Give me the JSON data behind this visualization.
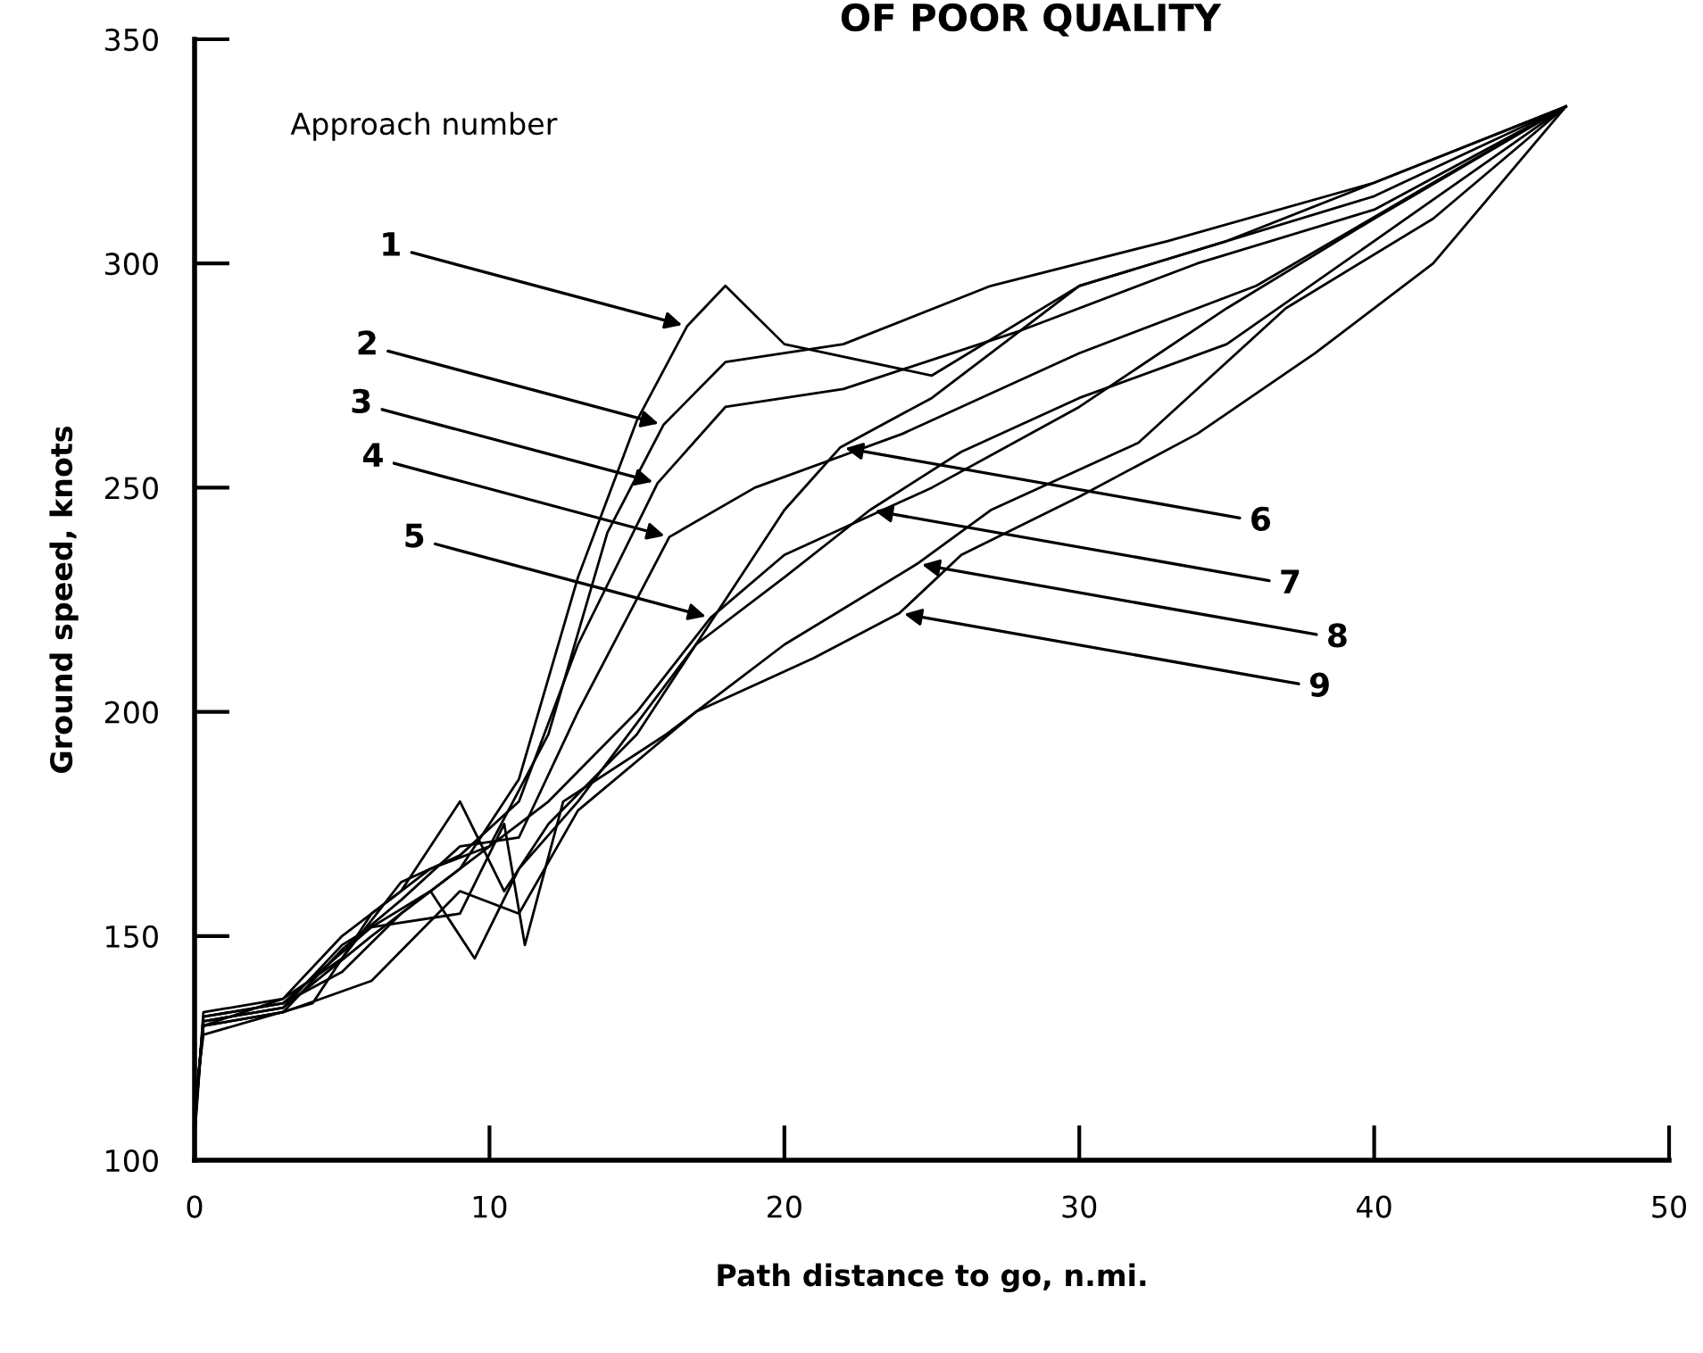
{
  "chart_data": {
    "type": "line",
    "xlabel": "Path distance to go, n.mi.",
    "ylabel": "Ground speed, knots",
    "xlim": [
      0,
      50
    ],
    "ylim": [
      100,
      350
    ],
    "xticks": [
      0,
      10,
      20,
      30,
      40,
      50
    ],
    "yticks": [
      100,
      150,
      200,
      250,
      300,
      350
    ],
    "grid": false,
    "marker": "none",
    "line_style": "solid",
    "series": [
      {
        "color": "#000000",
        "x": [
          0,
          0.3,
          3,
          5,
          7,
          9,
          11,
          13,
          15,
          16.7,
          18,
          20,
          25,
          30,
          35,
          40,
          46.5
        ],
        "values": [
          105,
          132,
          135,
          142,
          155,
          165,
          185,
          230,
          265,
          286,
          295,
          282,
          275,
          295,
          305,
          315,
          335
        ]
      },
      {
        "color": "#000000",
        "x": [
          0,
          0.3,
          3,
          6,
          8,
          10,
          12,
          14,
          15.9,
          18,
          22,
          27,
          33,
          40,
          46.5
        ],
        "values": [
          108,
          131,
          134,
          150,
          160,
          170,
          195,
          240,
          264,
          278,
          282,
          295,
          305,
          318,
          335
        ]
      },
      {
        "color": "#000000",
        "x": [
          0,
          0.3,
          3,
          5,
          7,
          9,
          11,
          13,
          15.7,
          18,
          22,
          28,
          34,
          40,
          46.5
        ],
        "values": [
          106,
          133,
          136,
          145,
          162,
          168,
          180,
          215,
          251,
          268,
          272,
          285,
          300,
          312,
          335
        ]
      },
      {
        "color": "#000000",
        "x": [
          0,
          0.3,
          3,
          5,
          7,
          9,
          11,
          13,
          16.1,
          19,
          24,
          30,
          36,
          42,
          46.5
        ],
        "values": [
          110,
          130,
          133,
          147,
          158,
          170,
          172,
          200,
          239,
          250,
          262,
          280,
          295,
          318,
          335
        ]
      },
      {
        "color": "#000000",
        "x": [
          0,
          0.3,
          4,
          6,
          8,
          10,
          12,
          15,
          17.5,
          20,
          25,
          30,
          35,
          40,
          46.5
        ],
        "values": [
          112,
          128,
          135,
          155,
          165,
          170,
          180,
          200,
          221,
          235,
          250,
          268,
          290,
          310,
          335
        ]
      },
      {
        "color": "#000000",
        "x": [
          0,
          0.3,
          3,
          5,
          7,
          9,
          10.5,
          12,
          15,
          18,
          20,
          21.9,
          25,
          30,
          35,
          40,
          46.5
        ],
        "values": [
          110,
          130,
          136,
          150,
          160,
          180,
          160,
          175,
          195,
          225,
          245,
          259,
          270,
          295,
          305,
          318,
          335
        ]
      },
      {
        "color": "#000000",
        "x": [
          0,
          0.3,
          3,
          5,
          8,
          9.5,
          11,
          13,
          17,
          20,
          22.9,
          26,
          30,
          35,
          40,
          46.5
        ],
        "values": [
          109,
          131,
          134,
          148,
          160,
          145,
          165,
          180,
          215,
          230,
          245,
          258,
          270,
          282,
          305,
          335
        ]
      },
      {
        "color": "#000000",
        "x": [
          0,
          0.3,
          3,
          6,
          9,
          10.5,
          11.2,
          12.5,
          16,
          20,
          24.5,
          27,
          32,
          37,
          42,
          46.5
        ],
        "values": [
          107,
          132,
          135,
          152,
          155,
          175,
          148,
          180,
          195,
          215,
          233,
          245,
          260,
          290,
          310,
          335
        ]
      },
      {
        "color": "#000000",
        "x": [
          0,
          0.3,
          3,
          6,
          9,
          11,
          13,
          17,
          21,
          23.9,
          26,
          30,
          34,
          38,
          42,
          46.5
        ],
        "values": [
          111,
          130,
          133,
          140,
          160,
          155,
          178,
          200,
          212,
          222,
          235,
          248,
          262,
          280,
          300,
          335
        ]
      }
    ],
    "annotations": [
      "OF POOR QUALITY",
      "Approach number",
      {
        "text": "1",
        "x": 16.7,
        "y": 286
      },
      {
        "text": "2",
        "x": 15.9,
        "y": 264
      },
      {
        "text": "3",
        "x": 15.7,
        "y": 251
      },
      {
        "text": "4",
        "x": 16.1,
        "y": 239
      },
      {
        "text": "5",
        "x": 17.5,
        "y": 221
      },
      {
        "text": "6",
        "x": 21.9,
        "y": 259
      },
      {
        "text": "7",
        "x": 22.9,
        "y": 245
      },
      {
        "text": "8",
        "x": 24.5,
        "y": 233
      },
      {
        "text": "9",
        "x": 23.9,
        "y": 222
      }
    ]
  }
}
